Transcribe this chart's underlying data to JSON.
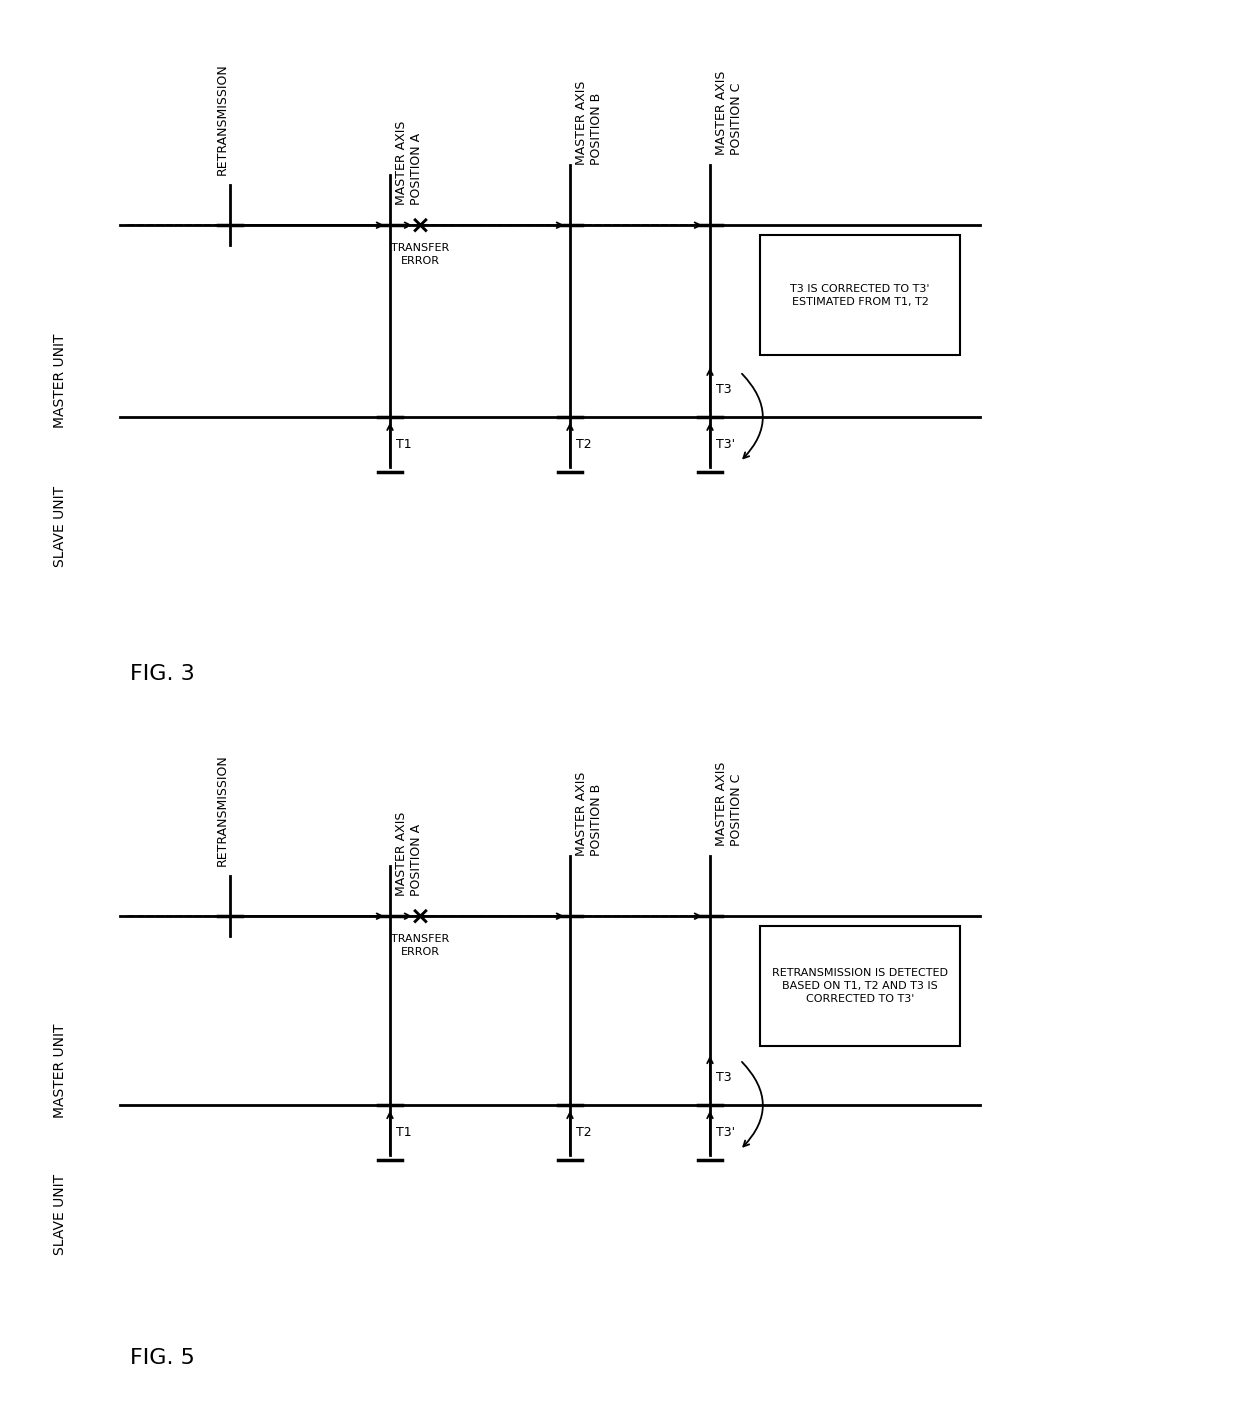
{
  "fig3": {
    "title": "FIG. 3",
    "master_unit_label": "MASTER UNIT",
    "slave_unit_label": "SLAVE UNIT",
    "pos_labels": [
      "MASTER AXIS\nPOSITION A",
      "MASTER AXIS\nPOSITION B",
      "MASTER AXIS\nPOSITION C"
    ],
    "retransmission_label": "RETRANSMISSION",
    "transfer_error_label": "TRANSFER\nERROR",
    "t1_label": "T1",
    "t2_label": "T2",
    "t3_label": "T3",
    "t3p_label": "T3'",
    "note_label": "T3 IS CORRECTED TO T3'\nESTIMATED FROM T1, T2"
  },
  "fig5": {
    "title": "FIG. 5",
    "master_unit_label": "MASTER UNIT",
    "slave_unit_label": "SLAVE UNIT",
    "pos_labels": [
      "MASTER AXIS\nPOSITION A",
      "MASTER AXIS\nPOSITION B",
      "MASTER AXIS\nPOSITION C"
    ],
    "retransmission_label": "RETRANSMISSION",
    "transfer_error_label": "TRANSFER\nERROR",
    "t1_label": "T1",
    "t2_label": "T2",
    "t3_label": "T3",
    "t3p_label": "T3'",
    "note_label": "RETRANSMISSION IS DETECTED\nBASED ON T1, T2 AND T3 IS\nCORRECTED TO T3'"
  }
}
